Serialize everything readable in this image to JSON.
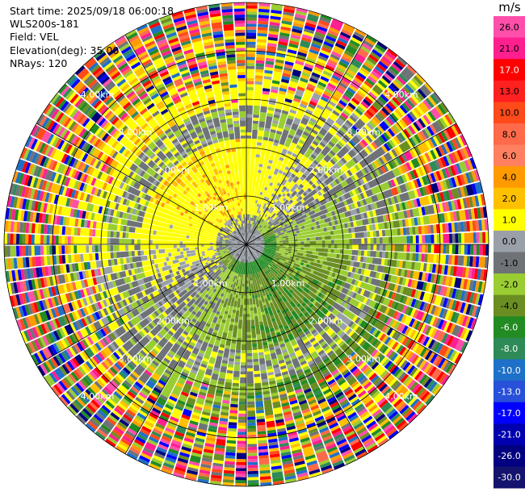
{
  "header": {
    "start_time": "Start time: 2025/09/18 06:00:18",
    "instrument": "WLS200s-181",
    "field": "Field: VEL",
    "elevation": "Elevation(deg): 35.00",
    "nrays": "NRays: 120"
  },
  "chart_data": {
    "type": "heatmap",
    "projection": "polar-ppi",
    "field": "VEL",
    "unit": "m/s",
    "max_range_km": 5.0,
    "range_ring_labels": [
      "1.00km",
      "2.00km",
      "3.00km",
      "4.00km",
      "5.00km"
    ],
    "range_rings_km": [
      1,
      2,
      3,
      4,
      5
    ],
    "colorbar": {
      "ticks": [
        "26.0",
        "21.0",
        "17.0",
        "13.0",
        "10.0",
        "8.0",
        "6.0",
        "4.0",
        "2.0",
        "1.0",
        "0.0",
        "-1.0",
        "-2.0",
        "-4.0",
        "-6.0",
        "-8.0",
        "-10.0",
        "-13.0",
        "-17.0",
        "-21.0",
        "-26.0",
        "-30.0"
      ],
      "colors": [
        "#ff4faa",
        "#ff1f8f",
        "#ff0000",
        "#ff2020",
        "#ff4a1a",
        "#ff6a4a",
        "#ff8060",
        "#ff9a00",
        "#ffc000",
        "#ffff00",
        "#9aa0a8",
        "#6f7378",
        "#9acd32",
        "#6b8e23",
        "#228b22",
        "#2e8b57",
        "#1e70c8",
        "#2850d8",
        "#0000ff",
        "#0000b0",
        "#000080",
        "#14146e"
      ]
    }
  }
}
